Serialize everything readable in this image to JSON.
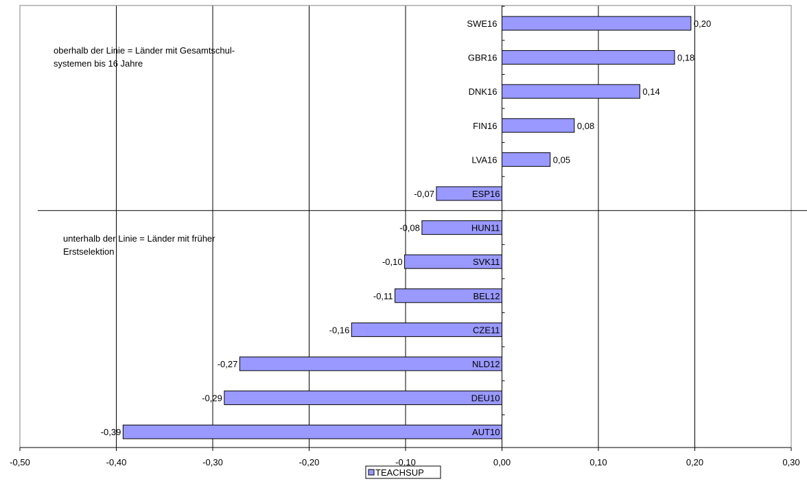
{
  "chart_data": {
    "type": "bar",
    "orientation": "horizontal",
    "categories": [
      "SWE16",
      "GBR16",
      "DNK16",
      "FIN16",
      "LVA16",
      "ESP16",
      "HUN11",
      "SVK11",
      "BEL12",
      "CZE11",
      "NLD12",
      "DEU10",
      "AUT10"
    ],
    "series": [
      {
        "name": "TEACHSUP",
        "values": [
          0.196,
          0.179,
          0.143,
          0.075,
          0.05,
          -0.068,
          -0.083,
          -0.101,
          -0.111,
          -0.156,
          -0.272,
          -0.288,
          -0.393
        ],
        "labels": [
          "0,20",
          "0,18",
          "0,14",
          "0,08",
          "0,05",
          "-0,07",
          "-0,08",
          "-0,10",
          "-0,11",
          "-0,16",
          "-0,27",
          "-0,29",
          "-0,39"
        ],
        "color": "#9999ff"
      }
    ],
    "xlim": [
      -0.5,
      0.3
    ],
    "xticks": [
      -0.5,
      -0.4,
      -0.3,
      -0.2,
      -0.1,
      0.0,
      0.1,
      0.2,
      0.3
    ],
    "xtick_labels": [
      "-0,50",
      "-0,40",
      "-0,30",
      "-0,20",
      "-0,10",
      "0,00",
      "0,10",
      "0,20",
      "0,30"
    ],
    "grid": "vertical",
    "legend": "bottom",
    "divider_between": [
      "ESP16",
      "HUN11"
    ],
    "annotations": {
      "above": "oberhalb der Linie = Länder mit Gesamtschul-\nsystemen bis 16 Jahre",
      "below": "unterhalb der Linie = Länder mit früher\nErstselektion"
    },
    "title": "",
    "xlabel": "",
    "ylabel": ""
  }
}
